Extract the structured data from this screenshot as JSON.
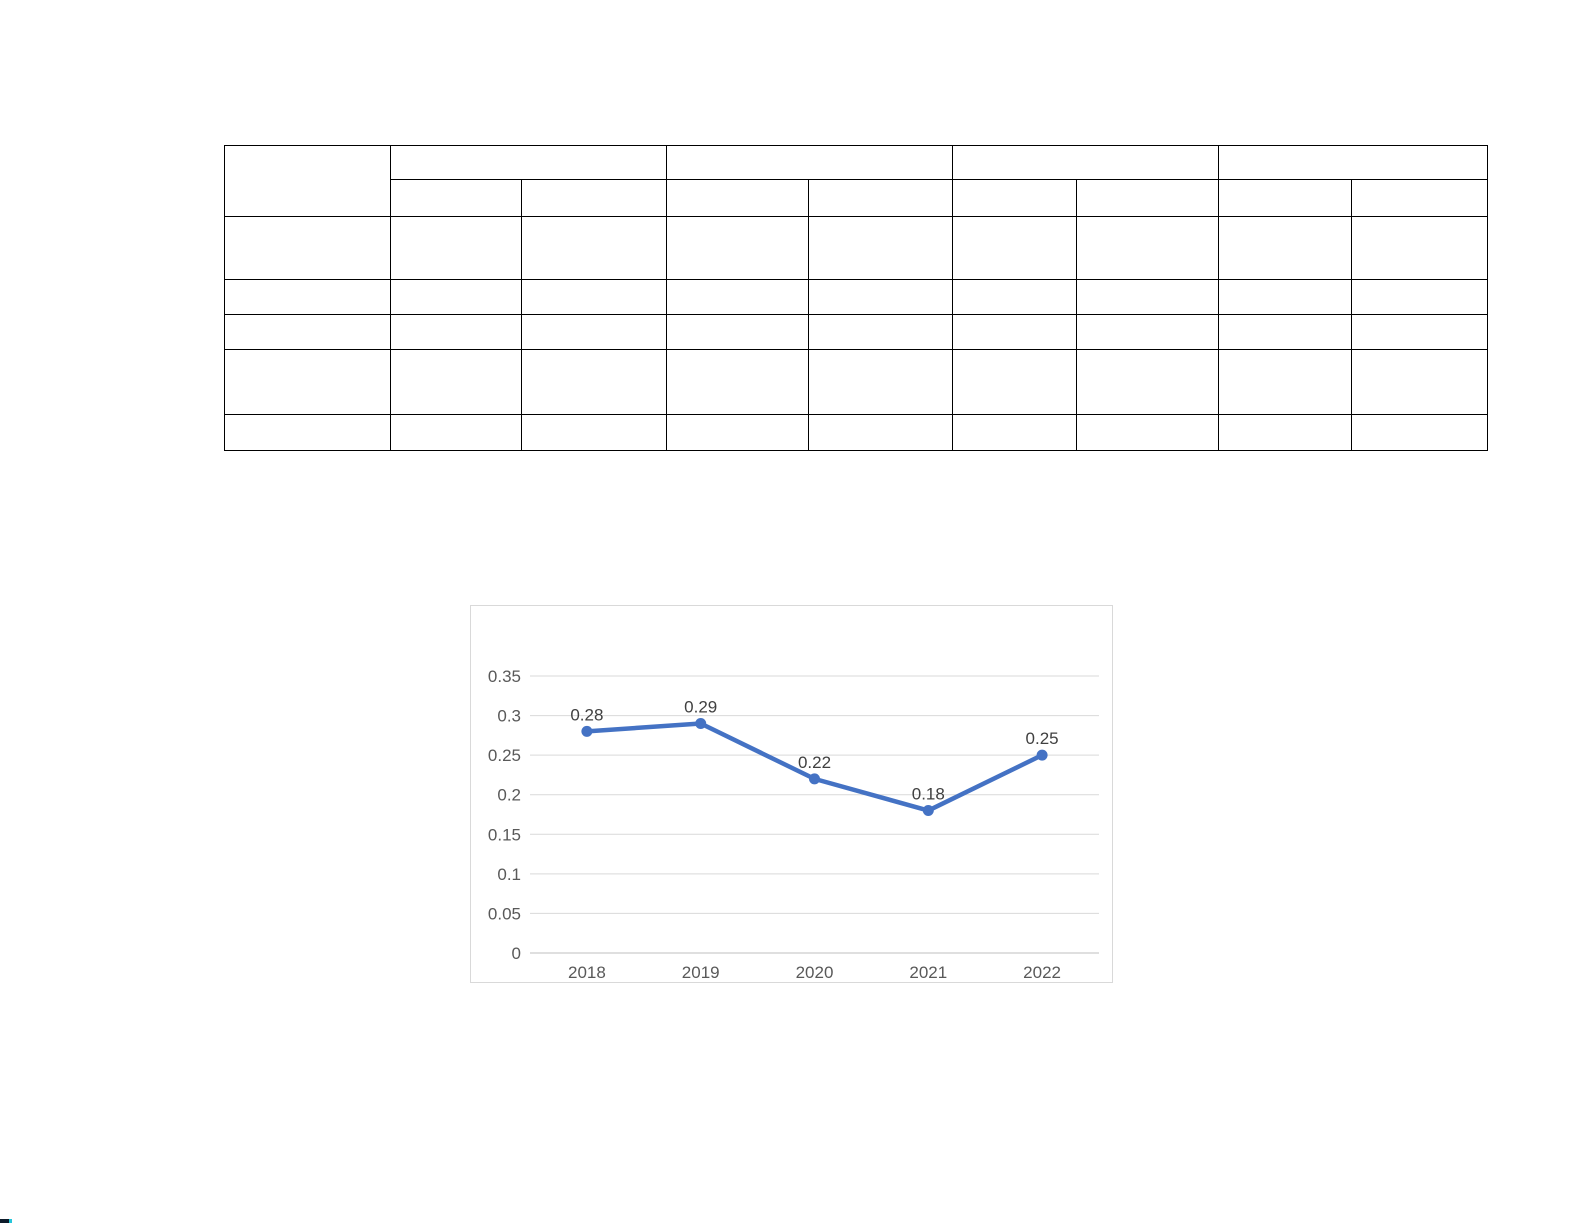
{
  "page": {
    "background_color": "#ffffff"
  },
  "table": {
    "cells_text": "",
    "border_color": "#000000",
    "header_group_count": 4,
    "sub_columns_per_group": 2,
    "body_row_count": 5
  },
  "chart_data": {
    "type": "line",
    "categories": [
      "2018",
      "2019",
      "2020",
      "2021",
      "2022"
    ],
    "values": [
      0.28,
      0.29,
      0.22,
      0.18,
      0.25
    ],
    "data_labels": [
      "0.28",
      "0.29",
      "0.22",
      "0.18",
      "0.25"
    ],
    "title": "",
    "xlabel": "",
    "ylabel": "",
    "ylim": [
      0,
      0.35
    ],
    "yticks": [
      "0",
      "0.05",
      "0.1",
      "0.15",
      "0.2",
      "0.25",
      "0.3",
      "0.35"
    ],
    "grid": true,
    "legend": "none",
    "line_color": "#4472c4",
    "marker": "circle",
    "gridline_color": "#d9d9d9",
    "axis_color": "#bfbfbf",
    "tick_label_color": "#595959",
    "data_label_color": "#404040",
    "frame_border_color": "#d9d9d9"
  },
  "artifact": {
    "dark_color": "#0d1b2a",
    "teal_color": "#26c6da"
  }
}
